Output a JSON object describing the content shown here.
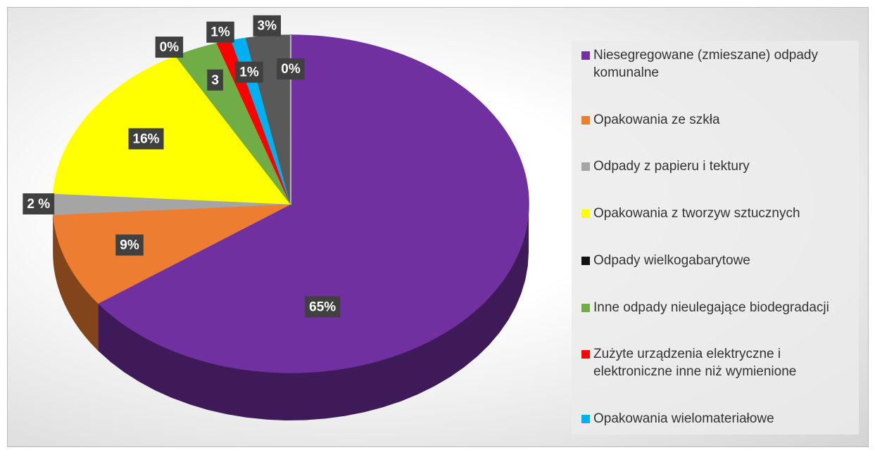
{
  "chart_data": {
    "type": "pie",
    "categories": [
      "Niesegregowane (zmieszane) odpady komunalne",
      "Opakowania ze szkła",
      "Odpady z papieru i tektury",
      "Opakowania z tworzyw sztucznych",
      "Odpady wielkogabarytowe",
      "Inne odpady nieulegające biodegradacji",
      "Zużyte urządzenia elektryczne i elektroniczne inne niż wymienione",
      "Opakowania wielomateriałowe",
      null,
      null
    ],
    "values": [
      65,
      9,
      2,
      16,
      0,
      3,
      1,
      1,
      3,
      0
    ],
    "value_labels": [
      "65%",
      "9%",
      "2 %",
      "16%",
      "0%",
      "3",
      "1%",
      "1%",
      "3%",
      "0%"
    ],
    "colors": [
      "#7030a0",
      "#ed7d31",
      "#a5a5a5",
      "#ffff00",
      "#111111",
      "#70ad47",
      "#ff0000",
      "#00b0f0",
      "#595959",
      "#d0d0d0"
    ]
  }
}
